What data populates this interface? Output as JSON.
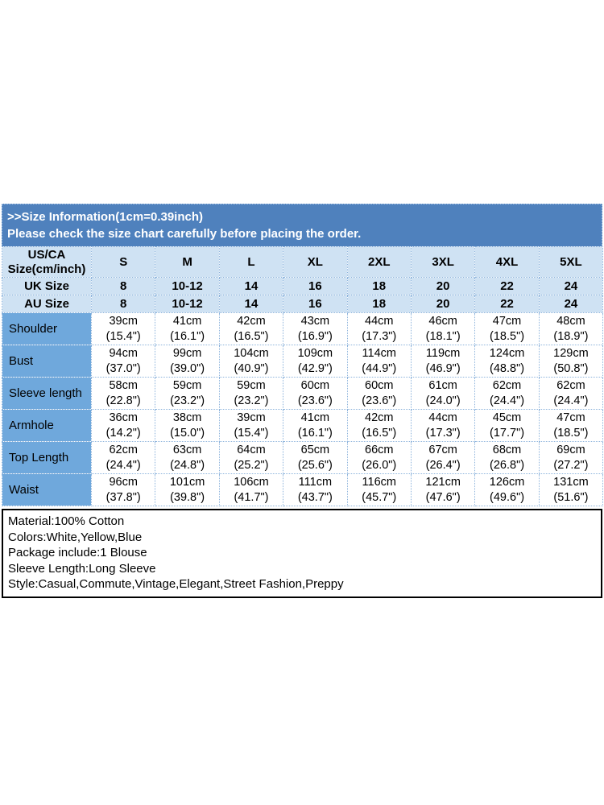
{
  "banner": {
    "line1": ">>Size Information(1cm=0.39inch)",
    "line2": "Please check the size chart carefully before placing the order."
  },
  "size_chart": {
    "corner_label": "US/CA\nSize(cm/inch)",
    "size_columns": [
      "S",
      "M",
      "L",
      "XL",
      "2XL",
      "3XL",
      "4XL",
      "5XL"
    ],
    "region_rows": [
      {
        "label": "UK Size",
        "values": [
          "8",
          "10-12",
          "14",
          "16",
          "18",
          "20",
          "22",
          "24"
        ]
      },
      {
        "label": "AU Size",
        "values": [
          "8",
          "10-12",
          "14",
          "16",
          "18",
          "20",
          "22",
          "24"
        ]
      }
    ],
    "measurement_rows": [
      {
        "label": "Shoulder",
        "values": [
          "39cm\n(15.4\")",
          "41cm\n(16.1\")",
          "42cm\n(16.5\")",
          "43cm\n(16.9\")",
          "44cm\n(17.3\")",
          "46cm\n(18.1\")",
          "47cm\n(18.5\")",
          "48cm\n(18.9\")"
        ]
      },
      {
        "label": "Bust",
        "values": [
          "94cm\n(37.0\")",
          "99cm\n(39.0\")",
          "104cm\n(40.9\")",
          "109cm\n(42.9\")",
          "114cm\n(44.9\")",
          "119cm\n(46.9\")",
          "124cm\n(48.8\")",
          "129cm\n(50.8\")"
        ]
      },
      {
        "label": "Sleeve length",
        "values": [
          "58cm\n(22.8\")",
          "59cm\n(23.2\")",
          "59cm\n(23.2\")",
          "60cm\n(23.6\")",
          "60cm\n(23.6\")",
          "61cm\n(24.0\")",
          "62cm\n(24.4\")",
          "62cm\n(24.4\")"
        ]
      },
      {
        "label": "Armhole",
        "values": [
          "36cm\n(14.2\")",
          "38cm\n(15.0\")",
          "39cm\n(15.4\")",
          "41cm\n(16.1\")",
          "42cm\n(16.5\")",
          "44cm\n(17.3\")",
          "45cm\n(17.7\")",
          "47cm\n(18.5\")"
        ]
      },
      {
        "label": "Top Length",
        "values": [
          "62cm\n(24.4\")",
          "63cm\n(24.8\")",
          "64cm\n(25.2\")",
          "65cm\n(25.6\")",
          "66cm\n(26.0\")",
          "67cm\n(26.4\")",
          "68cm\n(26.8\")",
          "69cm\n(27.2\")"
        ]
      },
      {
        "label": "Waist",
        "values": [
          "96cm\n(37.8\")",
          "101cm\n(39.8\")",
          "106cm\n(41.7\")",
          "111cm\n(43.7\")",
          "116cm\n(45.7\")",
          "121cm\n(47.6\")",
          "126cm\n(49.6\")",
          "131cm\n(51.6\")"
        ]
      }
    ]
  },
  "details": {
    "lines": [
      "Material:100% Cotton",
      "Colors:White,Yellow,Blue",
      "Package include:1 Blouse",
      "Sleeve Length:Long Sleeve",
      "Style:Casual,Commute,Vintage,Elegant,Street Fashion,Preppy"
    ]
  },
  "colors": {
    "banner_bg": "#4f81bd",
    "banner_text": "#ffffff",
    "header_bg": "#cfe2f3",
    "label_col_bg": "#6fa8dc",
    "grid_line": "#8eb4dc",
    "table_text": "#000000"
  }
}
